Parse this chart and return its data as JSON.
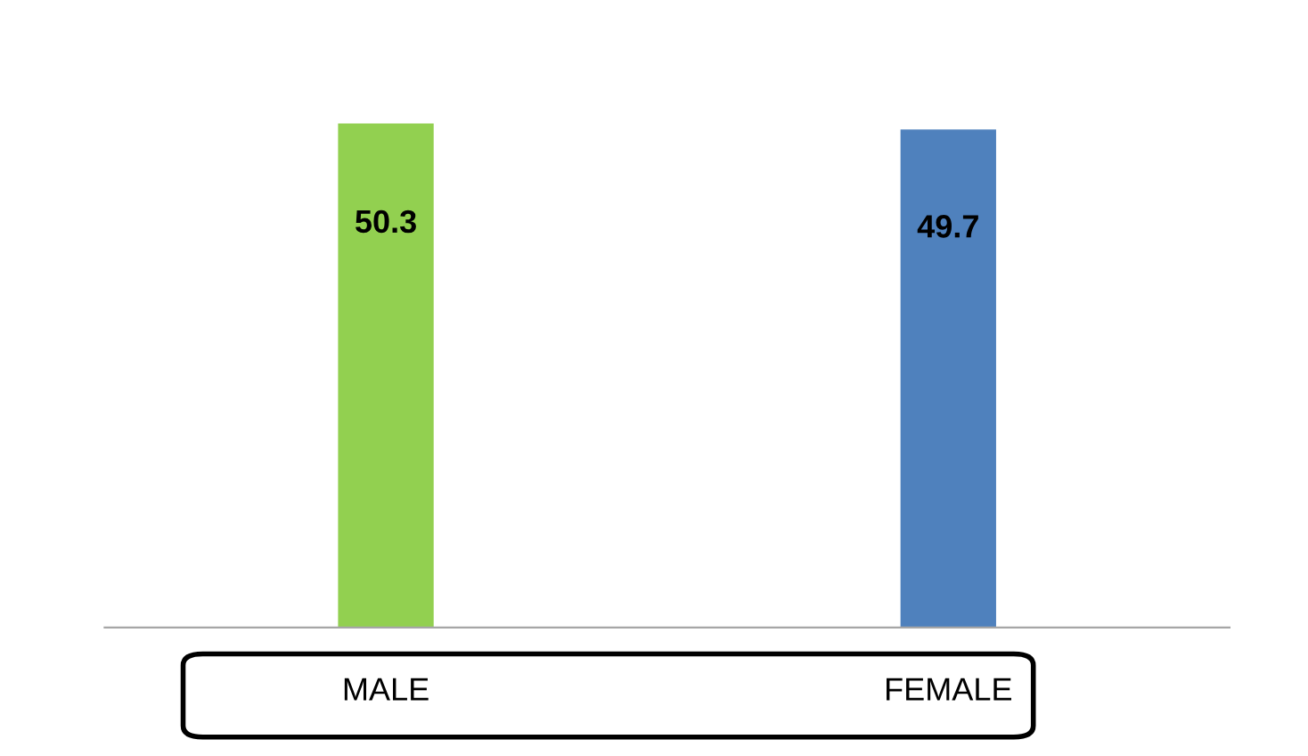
{
  "chart_data": {
    "type": "bar",
    "categories": [
      "MALE",
      "FEMALE"
    ],
    "values": [
      50.3,
      49.7
    ],
    "colors": [
      "#92d050",
      "#4f81bd"
    ],
    "data_labels": true
  }
}
